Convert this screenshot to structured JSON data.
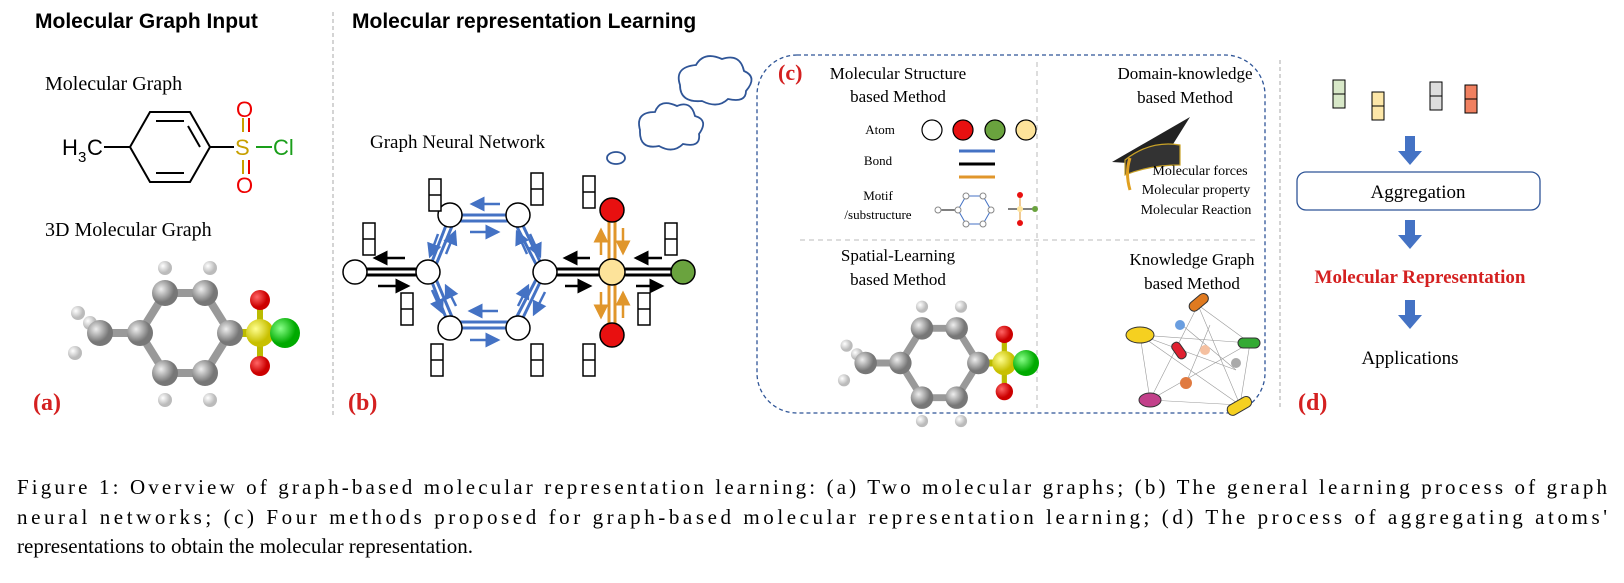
{
  "panel_a": {
    "title": "Molecular Graph Input",
    "mol_graph_label": "Molecular Graph",
    "mol_3d_label": "3D Molecular Graph",
    "formula": {
      "h3c": "H",
      "sub3": "3",
      "c": "C",
      "s": "S",
      "o": "O",
      "cl": "Cl"
    },
    "tag": "(a)"
  },
  "panel_b": {
    "title": "Molecular representation Learning",
    "gnn_label": "Graph Neural Network",
    "tag": "(b)"
  },
  "panel_c": {
    "tag": "(c)",
    "structure": {
      "title1": "Molecular Structure",
      "title2": "based Method",
      "atom": "Atom",
      "bond": "Bond",
      "motif1": "Motif",
      "motif2": "/substructure"
    },
    "domain": {
      "title1": "Domain-knowledge",
      "title2": "based Method",
      "items": [
        "Molecular forces",
        "Molecular property",
        "Molecular Reaction"
      ]
    },
    "spatial": {
      "title1": "Spatial-Learning",
      "title2": "based Method"
    },
    "kg": {
      "title1": "Knowledge Graph",
      "title2": "based Method"
    }
  },
  "panel_d": {
    "aggregation": "Aggregation",
    "representation": "Molecular Representation",
    "applications": "Applications",
    "tag": "(d)"
  },
  "caption": {
    "line1": "Figure 1: Overview of graph-based molecular representation learning: (a) Two molecular graphs; (b) The general learning process of graph",
    "line2": "neural networks; (c) Four methods proposed for graph-based molecular representation learning; (d) The process of aggregating atoms'",
    "line3": "representations to obtain the molecular representation."
  },
  "colors": {
    "red_label": "#d42020",
    "blue_bond": "#4472c4",
    "orange_bond": "#e0962b",
    "atom_red": "#e81010",
    "atom_green": "#6aa33e",
    "atom_yellow": "#fde39a",
    "sulfur_green": "#1a9e1a"
  }
}
